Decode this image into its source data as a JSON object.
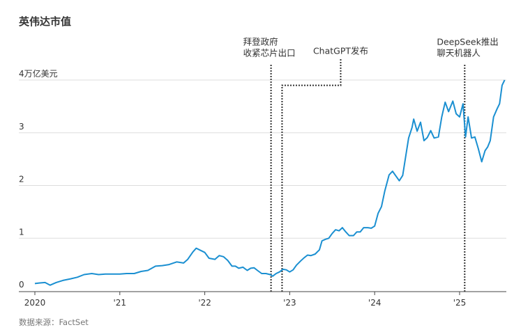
{
  "chart_data": {
    "type": "line",
    "title": "英伟达市值",
    "unit_label": "4万亿美元",
    "source": "数据来源：FactSet",
    "yticks": [
      0,
      1,
      2,
      3,
      4
    ],
    "ylim": [
      0,
      4
    ],
    "xticks": [
      {
        "label": "2020",
        "year": 2020
      },
      {
        "label": "'21",
        "year": 2021
      },
      {
        "label": "'22",
        "year": 2022
      },
      {
        "label": "'23",
        "year": 2023
      },
      {
        "label": "'24",
        "year": 2024
      },
      {
        "label": "'25",
        "year": 2025
      }
    ],
    "xlim": [
      2020.0,
      2025.55
    ],
    "grid": true,
    "colors": {
      "line": "#1a8fd1",
      "grid": "#dddddd",
      "annotation": "#333333",
      "text": "#333333",
      "muted": "#777777"
    },
    "series": [
      {
        "values": [
          [
            2020.0,
            0.14
          ],
          [
            2020.05,
            0.15
          ],
          [
            2020.12,
            0.16
          ],
          [
            2020.18,
            0.11
          ],
          [
            2020.25,
            0.16
          ],
          [
            2020.33,
            0.2
          ],
          [
            2020.42,
            0.23
          ],
          [
            2020.5,
            0.26
          ],
          [
            2020.58,
            0.31
          ],
          [
            2020.67,
            0.33
          ],
          [
            2020.75,
            0.31
          ],
          [
            2020.83,
            0.32
          ],
          [
            2020.92,
            0.32
          ],
          [
            2021.0,
            0.32
          ],
          [
            2021.08,
            0.33
          ],
          [
            2021.17,
            0.33
          ],
          [
            2021.25,
            0.37
          ],
          [
            2021.33,
            0.39
          ],
          [
            2021.42,
            0.47
          ],
          [
            2021.5,
            0.48
          ],
          [
            2021.58,
            0.5
          ],
          [
            2021.67,
            0.55
          ],
          [
            2021.75,
            0.53
          ],
          [
            2021.8,
            0.6
          ],
          [
            2021.86,
            0.74
          ],
          [
            2021.9,
            0.81
          ],
          [
            2021.95,
            0.77
          ],
          [
            2022.0,
            0.73
          ],
          [
            2022.05,
            0.62
          ],
          [
            2022.12,
            0.6
          ],
          [
            2022.17,
            0.67
          ],
          [
            2022.22,
            0.65
          ],
          [
            2022.27,
            0.58
          ],
          [
            2022.32,
            0.47
          ],
          [
            2022.36,
            0.47
          ],
          [
            2022.4,
            0.43
          ],
          [
            2022.45,
            0.45
          ],
          [
            2022.5,
            0.39
          ],
          [
            2022.54,
            0.43
          ],
          [
            2022.58,
            0.44
          ],
          [
            2022.62,
            0.39
          ],
          [
            2022.67,
            0.33
          ],
          [
            2022.72,
            0.33
          ],
          [
            2022.77,
            0.31
          ],
          [
            2022.8,
            0.28
          ],
          [
            2022.84,
            0.33
          ],
          [
            2022.88,
            0.36
          ],
          [
            2022.92,
            0.41
          ],
          [
            2022.96,
            0.4
          ],
          [
            2023.0,
            0.36
          ],
          [
            2023.04,
            0.4
          ],
          [
            2023.08,
            0.49
          ],
          [
            2023.13,
            0.57
          ],
          [
            2023.17,
            0.63
          ],
          [
            2023.21,
            0.68
          ],
          [
            2023.25,
            0.67
          ],
          [
            2023.3,
            0.7
          ],
          [
            2023.35,
            0.78
          ],
          [
            2023.38,
            0.95
          ],
          [
            2023.42,
            0.98
          ],
          [
            2023.46,
            1.0
          ],
          [
            2023.5,
            1.09
          ],
          [
            2023.54,
            1.16
          ],
          [
            2023.58,
            1.14
          ],
          [
            2023.62,
            1.2
          ],
          [
            2023.66,
            1.12
          ],
          [
            2023.7,
            1.05
          ],
          [
            2023.75,
            1.05
          ],
          [
            2023.79,
            1.12
          ],
          [
            2023.83,
            1.12
          ],
          [
            2023.87,
            1.2
          ],
          [
            2023.92,
            1.2
          ],
          [
            2023.96,
            1.19
          ],
          [
            2024.0,
            1.23
          ],
          [
            2024.04,
            1.47
          ],
          [
            2024.08,
            1.6
          ],
          [
            2024.12,
            1.9
          ],
          [
            2024.17,
            2.2
          ],
          [
            2024.21,
            2.27
          ],
          [
            2024.25,
            2.18
          ],
          [
            2024.29,
            2.09
          ],
          [
            2024.33,
            2.19
          ],
          [
            2024.37,
            2.6
          ],
          [
            2024.4,
            2.9
          ],
          [
            2024.44,
            3.1
          ],
          [
            2024.46,
            3.26
          ],
          [
            2024.5,
            3.03
          ],
          [
            2024.54,
            3.2
          ],
          [
            2024.58,
            2.85
          ],
          [
            2024.62,
            2.91
          ],
          [
            2024.66,
            3.04
          ],
          [
            2024.7,
            2.9
          ],
          [
            2024.75,
            2.92
          ],
          [
            2024.79,
            3.3
          ],
          [
            2024.83,
            3.58
          ],
          [
            2024.87,
            3.4
          ],
          [
            2024.92,
            3.6
          ],
          [
            2024.96,
            3.36
          ],
          [
            2025.0,
            3.3
          ],
          [
            2025.04,
            3.55
          ],
          [
            2025.07,
            2.92
          ],
          [
            2025.1,
            3.3
          ],
          [
            2025.14,
            2.9
          ],
          [
            2025.18,
            2.92
          ],
          [
            2025.22,
            2.7
          ],
          [
            2025.26,
            2.45
          ],
          [
            2025.3,
            2.66
          ],
          [
            2025.33,
            2.73
          ],
          [
            2025.36,
            2.85
          ],
          [
            2025.4,
            3.3
          ],
          [
            2025.44,
            3.45
          ],
          [
            2025.47,
            3.55
          ],
          [
            2025.5,
            3.9
          ],
          [
            2025.53,
            4.0
          ]
        ]
      }
    ],
    "annotations": [
      {
        "lines": [
          "拜登政府",
          "收紧芯片出口"
        ],
        "x": 2022.78,
        "ytop": 4.3
      },
      {
        "lines": [
          "ChatGPT发布"
        ],
        "x": 2022.91,
        "ytop": 3.9,
        "elbow_x": 2023.6,
        "elbow_y": 4.4
      },
      {
        "lines": [
          "DeepSeek推出",
          "聊天机器人"
        ],
        "x": 2025.06,
        "ytop": 4.3
      }
    ]
  }
}
